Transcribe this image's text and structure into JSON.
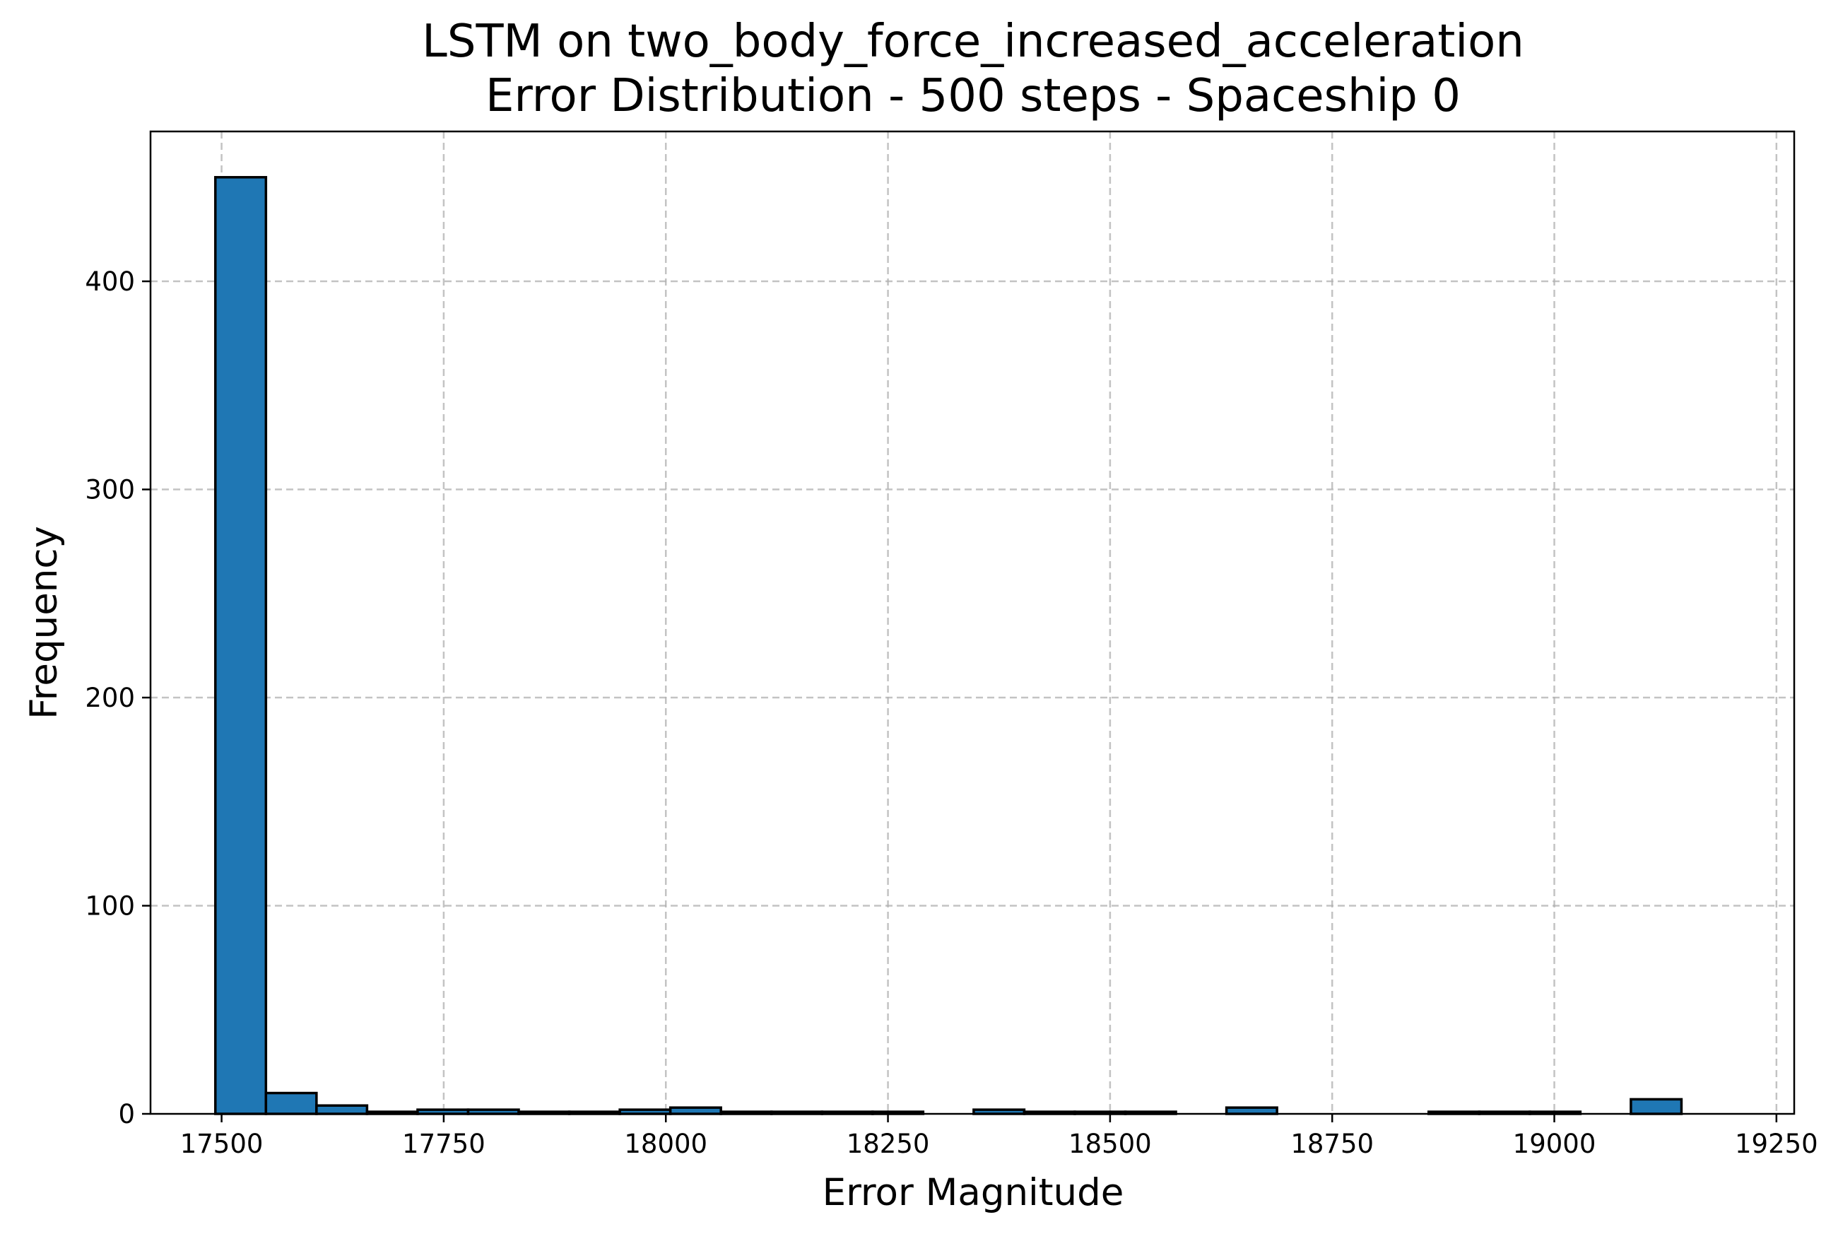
{
  "chart_data": {
    "type": "bar",
    "title": "LSTM on two_body_force_increased_acceleration",
    "subtitle": "Error Distribution - 500 steps - Spaceship 0",
    "xlabel": "Error Magnitude",
    "ylabel": "Frequency",
    "xlim": [
      17420,
      19270
    ],
    "ylim": [
      0,
      472
    ],
    "xticks": [
      17500,
      17750,
      18000,
      18250,
      18500,
      18750,
      19000,
      19250
    ],
    "yticks": [
      0,
      100,
      200,
      300,
      400
    ],
    "grid": true,
    "bar_color": "#1f77b4",
    "edge_color": "#000000",
    "bin_start": 17493,
    "bin_width": 56.9,
    "values": [
      450,
      10,
      4,
      1,
      2,
      2,
      1,
      1,
      2,
      3,
      1,
      1,
      1,
      1,
      0,
      2,
      1,
      1,
      1,
      0,
      3,
      0,
      0,
      0,
      1,
      1,
      1,
      0,
      7
    ]
  }
}
